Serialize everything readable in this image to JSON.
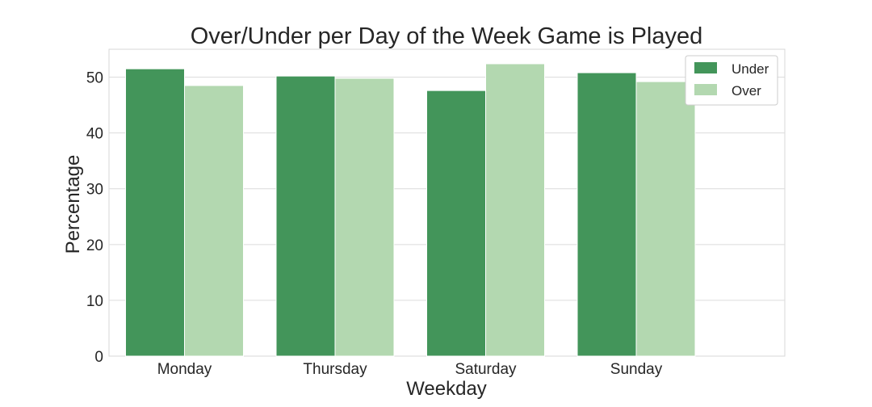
{
  "chart_data": {
    "type": "bar",
    "title": "Over/Under per Day of the Week Game is Played",
    "xlabel": "Weekday",
    "ylabel": "Percentage",
    "categories": [
      "Monday",
      "Thursday",
      "Saturday",
      "Sunday"
    ],
    "series": [
      {
        "name": "Under",
        "values": [
          51.5,
          50.2,
          47.6,
          50.8
        ],
        "color": "#43955a"
      },
      {
        "name": "Over",
        "values": [
          48.5,
          49.8,
          52.4,
          49.2
        ],
        "color": "#b3d8b0"
      }
    ],
    "y_ticks": [
      0,
      10,
      20,
      30,
      40,
      50
    ],
    "ylim": [
      0,
      55
    ],
    "grid": true,
    "legend_position": "top-right"
  }
}
